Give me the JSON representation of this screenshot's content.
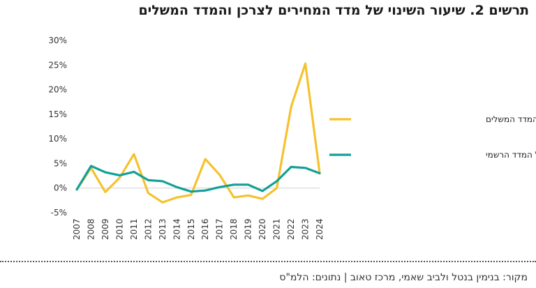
{
  "title": "תרשים 2. שיעור השינוי של מדד המחירים לצרכן והמדד המשלים",
  "source": "מקור: בנימין בנטל ולביב שאמי, מרכז טאוב | נתונים: הלמ\"ס",
  "chart_data": {
    "type": "line",
    "x": [
      "2007",
      "2008",
      "2009",
      "2010",
      "2011",
      "2012",
      "2013",
      "2014",
      "2015",
      "2016",
      "2017",
      "2018",
      "2019",
      "2020",
      "2021",
      "2022",
      "2023",
      "2024"
    ],
    "ylim": [
      -5,
      30
    ],
    "yticks": [
      "-5%",
      "0%",
      "5%",
      "10%",
      "15%",
      "20%",
      "25%",
      "30%"
    ],
    "ytick_values": [
      -5,
      0,
      5,
      10,
      15,
      20,
      25,
      30
    ],
    "grid": false,
    "legend_position": "right",
    "series": [
      {
        "name": "שיעור השינוי של המדד המשלים",
        "color": "#F5C22E",
        "values": [
          -0.3,
          4.1,
          -0.8,
          2.1,
          6.9,
          -1.0,
          -2.9,
          -1.9,
          -1.4,
          5.9,
          2.7,
          -1.9,
          -1.5,
          -2.2,
          0.0,
          16.5,
          25.3,
          3.1
        ]
      },
      {
        "name": "שיעור השינוי של המדד הרשמי",
        "color": "#12A096",
        "values": [
          -0.3,
          4.5,
          3.2,
          2.6,
          3.3,
          1.6,
          1.4,
          0.2,
          -0.7,
          -0.5,
          0.2,
          0.7,
          0.7,
          -0.6,
          1.4,
          4.3,
          4.1,
          3.0
        ]
      }
    ]
  }
}
